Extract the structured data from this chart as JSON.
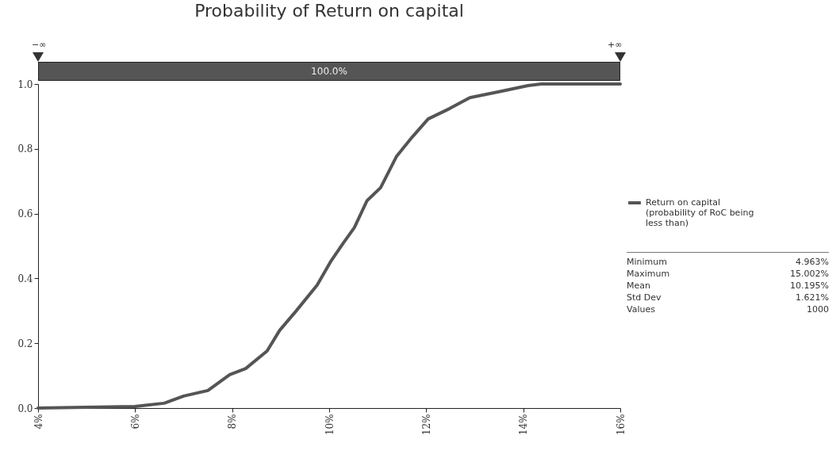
{
  "chart_data": {
    "type": "line",
    "title": "Probability of Return on capital",
    "legend": "right",
    "marker": "none",
    "line_style": "solid",
    "grid": false,
    "xlim": [
      4,
      16
    ],
    "xticks": [
      {
        "value": 4,
        "label": "4%"
      },
      {
        "value": 6,
        "label": "6%"
      },
      {
        "value": 8,
        "label": "8%"
      },
      {
        "value": 10,
        "label": "10%"
      },
      {
        "value": 12,
        "label": "12%"
      },
      {
        "value": 14,
        "label": "14%"
      },
      {
        "value": 16,
        "label": "16%"
      }
    ],
    "ylim": [
      0,
      1
    ],
    "yticks": [
      {
        "value": 0,
        "label": "0.0"
      },
      0.2,
      0.4,
      0.6,
      0.8,
      {
        "value": 1,
        "label": "1.0"
      }
    ],
    "series": [
      {
        "name": "Return on capital (probability of RoC being less than)",
        "color": "#555555",
        "x": [
          4,
          6,
          6.6,
          7.0,
          7.5,
          7.95,
          8.28,
          8.72,
          8.98,
          9.31,
          9.75,
          10.03,
          10.29,
          10.52,
          10.78,
          11.06,
          11.39,
          11.71,
          12.04,
          12.48,
          12.9,
          13.56,
          14.1,
          14.37,
          15,
          16
        ],
        "values": [
          0,
          0.005,
          0.015,
          0.037,
          0.054,
          0.103,
          0.122,
          0.176,
          0.24,
          0.298,
          0.379,
          0.452,
          0.509,
          0.557,
          0.64,
          0.68,
          0.777,
          0.836,
          0.892,
          0.924,
          0.958,
          0.978,
          0.995,
          1,
          1,
          1
        ]
      }
    ],
    "annotations": [
      "−∞",
      "+∞",
      "100.0%",
      "Minimum",
      "4.963%",
      "Maximum",
      "15.002%",
      "Mean",
      "10.195%",
      "Std Dev",
      "1.621%",
      "Values",
      "1000"
    ]
  }
}
